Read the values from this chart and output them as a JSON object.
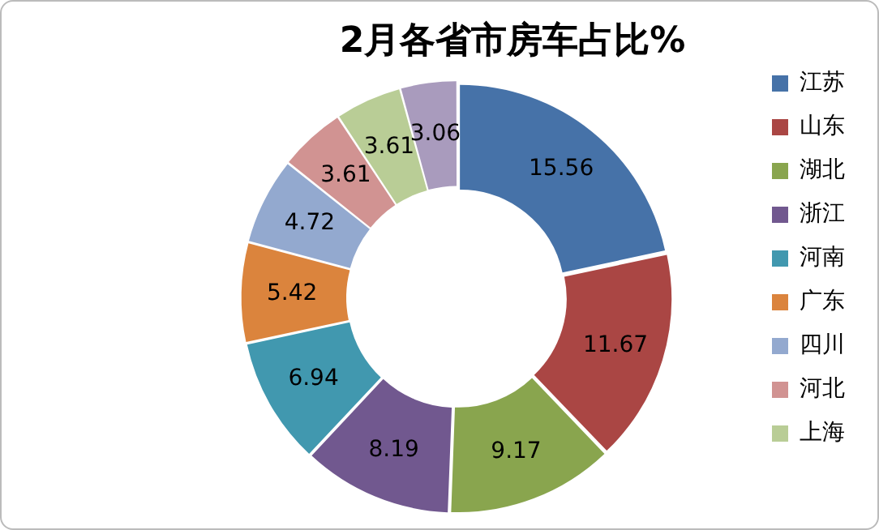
{
  "chart_data": {
    "type": "donut",
    "title": "2月各省市房车占比%",
    "categories": [
      "江苏",
      "山东",
      "湖北",
      "浙江",
      "河南",
      "广东",
      "四川",
      "河北",
      "上海",
      null
    ],
    "values": [
      15.56,
      11.67,
      9.17,
      8.19,
      6.94,
      5.42,
      4.72,
      3.61,
      3.61,
      3.06
    ],
    "colors": [
      "#4672a8",
      "#aa4644",
      "#89a54e",
      "#71588f",
      "#4198af",
      "#db843d",
      "#93a9cf",
      "#d19392",
      "#b9cd96",
      "#a99bbd"
    ],
    "data_labels": true,
    "legend": "right"
  }
}
